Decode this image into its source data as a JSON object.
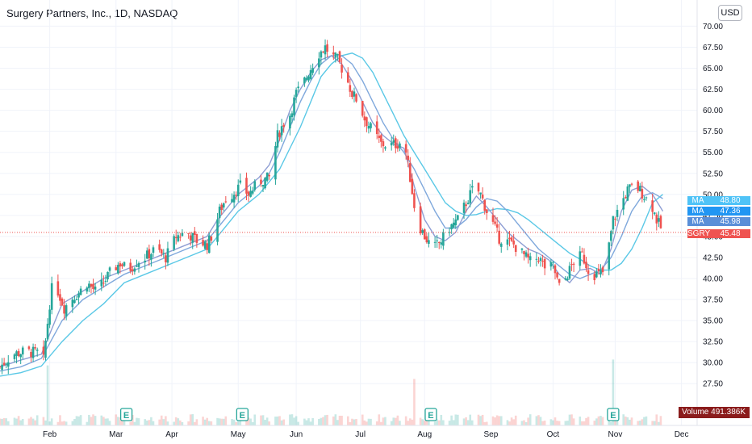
{
  "header": {
    "title": "Surgery Partners, Inc., 1D, NASDAQ",
    "currency": "USD"
  },
  "chart_data": {
    "type": "candlestick",
    "symbol": "SGRY",
    "y_ticks": [
      "27.50",
      "30.00",
      "32.50",
      "35.00",
      "37.50",
      "40.00",
      "42.50",
      "45.00",
      "47.50",
      "50.00",
      "52.50",
      "55.00",
      "57.50",
      "60.00",
      "62.50",
      "65.00",
      "67.50",
      "70.00"
    ],
    "ylim": [
      25.7,
      71
    ],
    "x_ticks": [
      "Feb",
      "Mar",
      "Apr",
      "May",
      "Jun",
      "Jul",
      "Aug",
      "Sep",
      "Oct",
      "Nov",
      "Dec"
    ],
    "x_tick_days": [
      24,
      56,
      83,
      115,
      143,
      174,
      205,
      237,
      267,
      297,
      329
    ],
    "current_price": 45.48,
    "close_points": [
      [
        0,
        29.5
      ],
      [
        6,
        31
      ],
      [
        12,
        31.3
      ],
      [
        18,
        31.2
      ],
      [
        21,
        30.3
      ],
      [
        24,
        37
      ],
      [
        26,
        40.5
      ],
      [
        28,
        38.5
      ],
      [
        31,
        36.5
      ],
      [
        34,
        37.5
      ],
      [
        38,
        38.3
      ],
      [
        42,
        39.5
      ],
      [
        46,
        38.5
      ],
      [
        50,
        39.5
      ],
      [
        54,
        41
      ],
      [
        58,
        41.8
      ],
      [
        62,
        41
      ],
      [
        66,
        42
      ],
      [
        70,
        42.5
      ],
      [
        75,
        43.5
      ],
      [
        80,
        42.5
      ],
      [
        85,
        45
      ],
      [
        90,
        45.5
      ],
      [
        95,
        44.5
      ],
      [
        100,
        44
      ],
      [
        103,
        45.5
      ],
      [
        106,
        48
      ],
      [
        109,
        49.5
      ],
      [
        112,
        50
      ],
      [
        116,
        51
      ],
      [
        120,
        50
      ],
      [
        125,
        51.5
      ],
      [
        130,
        52
      ],
      [
        134,
        57
      ],
      [
        137,
        58.5
      ],
      [
        140,
        59.5
      ],
      [
        143,
        62
      ],
      [
        146,
        63
      ],
      [
        150,
        65
      ],
      [
        153,
        66.5
      ],
      [
        157,
        67.5
      ],
      [
        160,
        66.5
      ],
      [
        163,
        66
      ],
      [
        167,
        64
      ],
      [
        170,
        62
      ],
      [
        173,
        61
      ],
      [
        176,
        59
      ],
      [
        180,
        57.5
      ],
      [
        184,
        56
      ],
      [
        188,
        55.8
      ],
      [
        192,
        56
      ],
      [
        195,
        56.5
      ],
      [
        198,
        52
      ],
      [
        201,
        47
      ],
      [
        205,
        45
      ],
      [
        209,
        43.5
      ],
      [
        213,
        44.5
      ],
      [
        217,
        46
      ],
      [
        221,
        47
      ],
      [
        225,
        49
      ],
      [
        229,
        51
      ],
      [
        232,
        50
      ],
      [
        235,
        48
      ],
      [
        238,
        46.5
      ],
      [
        241,
        44.8
      ],
      [
        244,
        44.5
      ],
      [
        248,
        44
      ],
      [
        252,
        43
      ],
      [
        256,
        42
      ],
      [
        260,
        42.5
      ],
      [
        264,
        41
      ],
      [
        267,
        41.5
      ],
      [
        270,
        39
      ],
      [
        273,
        40
      ],
      [
        277,
        42
      ],
      [
        281,
        42.8
      ],
      [
        285,
        40.5
      ],
      [
        289,
        40.5
      ],
      [
        292,
        40.8
      ],
      [
        296,
        47
      ],
      [
        300,
        49
      ],
      [
        303,
        50.5
      ],
      [
        306,
        51
      ],
      [
        309,
        50.5
      ],
      [
        312,
        49.5
      ],
      [
        315,
        48.5
      ],
      [
        317,
        47
      ],
      [
        320,
        45.5
      ]
    ],
    "moving_averages": [
      {
        "name": "MA",
        "value": "48.80",
        "color": "#5ac8e6",
        "points": [
          [
            0,
            28.4
          ],
          [
            10,
            28.8
          ],
          [
            20,
            29.6
          ],
          [
            30,
            32.5
          ],
          [
            40,
            35
          ],
          [
            50,
            37
          ],
          [
            60,
            39.5
          ],
          [
            70,
            40.5
          ],
          [
            80,
            41.5
          ],
          [
            90,
            42.5
          ],
          [
            100,
            43.5
          ],
          [
            105,
            45
          ],
          [
            110,
            46.5
          ],
          [
            115,
            48
          ],
          [
            120,
            49
          ],
          [
            125,
            50
          ],
          [
            130,
            51.5
          ],
          [
            135,
            53
          ],
          [
            140,
            55.5
          ],
          [
            145,
            58
          ],
          [
            150,
            61
          ],
          [
            155,
            64
          ],
          [
            160,
            65.5
          ],
          [
            165,
            66.5
          ],
          [
            170,
            66.8
          ],
          [
            175,
            66.2
          ],
          [
            180,
            64.5
          ],
          [
            185,
            62
          ],
          [
            190,
            59.5
          ],
          [
            195,
            57
          ],
          [
            200,
            55
          ],
          [
            205,
            53
          ],
          [
            210,
            51
          ],
          [
            215,
            49
          ],
          [
            220,
            48
          ],
          [
            225,
            47.5
          ],
          [
            230,
            47.6
          ],
          [
            235,
            48
          ],
          [
            240,
            48.3
          ],
          [
            245,
            48.2
          ],
          [
            250,
            47.8
          ],
          [
            255,
            47
          ],
          [
            260,
            46
          ],
          [
            265,
            45
          ],
          [
            270,
            44
          ],
          [
            275,
            43
          ],
          [
            280,
            42.3
          ],
          [
            285,
            41.5
          ],
          [
            290,
            41
          ],
          [
            295,
            41
          ],
          [
            300,
            41.8
          ],
          [
            305,
            43.5
          ],
          [
            310,
            46
          ],
          [
            315,
            49
          ],
          [
            320,
            50
          ]
        ]
      },
      {
        "name": "MA",
        "value": "47.36",
        "color": "#7fa8dc",
        "points": [
          [
            0,
            29
          ],
          [
            10,
            29.5
          ],
          [
            20,
            30.5
          ],
          [
            30,
            35
          ],
          [
            40,
            37.5
          ],
          [
            50,
            39
          ],
          [
            60,
            40.5
          ],
          [
            70,
            41.5
          ],
          [
            80,
            42.5
          ],
          [
            90,
            43.5
          ],
          [
            100,
            44.5
          ],
          [
            105,
            46
          ],
          [
            110,
            47.5
          ],
          [
            115,
            49
          ],
          [
            120,
            50
          ],
          [
            125,
            51
          ],
          [
            130,
            52.5
          ],
          [
            135,
            55
          ],
          [
            140,
            58
          ],
          [
            145,
            61
          ],
          [
            150,
            63.5
          ],
          [
            155,
            65.5
          ],
          [
            160,
            66.5
          ],
          [
            165,
            66.5
          ],
          [
            170,
            65.5
          ],
          [
            175,
            63.5
          ],
          [
            180,
            61
          ],
          [
            185,
            58.5
          ],
          [
            190,
            56.5
          ],
          [
            195,
            55
          ],
          [
            200,
            53
          ],
          [
            205,
            50.5
          ],
          [
            210,
            48
          ],
          [
            215,
            46
          ],
          [
            220,
            46
          ],
          [
            225,
            47
          ],
          [
            230,
            48.5
          ],
          [
            235,
            49.5
          ],
          [
            240,
            49.2
          ],
          [
            245,
            48
          ],
          [
            250,
            46.5
          ],
          [
            255,
            45
          ],
          [
            260,
            43.5
          ],
          [
            265,
            42.5
          ],
          [
            270,
            41.5
          ],
          [
            275,
            40.5
          ],
          [
            280,
            40
          ],
          [
            285,
            40.5
          ],
          [
            290,
            41
          ],
          [
            295,
            42.5
          ],
          [
            300,
            45
          ],
          [
            305,
            48
          ],
          [
            310,
            49.8
          ],
          [
            315,
            50.2
          ],
          [
            320,
            49.5
          ]
        ]
      },
      {
        "name": "MA",
        "value": "45.98",
        "color": "#8e9ed4",
        "points": [
          [
            0,
            29.5
          ],
          [
            10,
            30.3
          ],
          [
            20,
            31
          ],
          [
            25,
            34
          ],
          [
            30,
            37
          ],
          [
            40,
            38.5
          ],
          [
            50,
            40
          ],
          [
            60,
            41
          ],
          [
            70,
            42
          ],
          [
            80,
            43
          ],
          [
            90,
            44
          ],
          [
            100,
            45
          ],
          [
            105,
            47
          ],
          [
            110,
            48.5
          ],
          [
            115,
            50
          ],
          [
            120,
            51
          ],
          [
            125,
            52
          ],
          [
            130,
            53.5
          ],
          [
            135,
            56.5
          ],
          [
            140,
            60
          ],
          [
            145,
            62.5
          ],
          [
            150,
            64.5
          ],
          [
            155,
            66
          ],
          [
            160,
            66.5
          ],
          [
            165,
            65.5
          ],
          [
            170,
            63.5
          ],
          [
            175,
            61
          ],
          [
            180,
            58.5
          ],
          [
            185,
            57
          ],
          [
            190,
            56
          ],
          [
            195,
            55.5
          ],
          [
            200,
            51
          ],
          [
            205,
            47
          ],
          [
            210,
            45
          ],
          [
            215,
            44.5
          ],
          [
            220,
            45.5
          ],
          [
            225,
            48
          ],
          [
            230,
            49.8
          ],
          [
            235,
            48.5
          ],
          [
            240,
            47
          ],
          [
            245,
            45.5
          ],
          [
            250,
            44.5
          ],
          [
            255,
            43.5
          ],
          [
            260,
            43
          ],
          [
            265,
            42.2
          ],
          [
            270,
            40.5
          ],
          [
            275,
            39.5
          ],
          [
            280,
            41
          ],
          [
            285,
            41.2
          ],
          [
            290,
            40.5
          ],
          [
            295,
            43.5
          ],
          [
            300,
            48
          ],
          [
            305,
            50.5
          ],
          [
            310,
            51
          ],
          [
            315,
            50
          ],
          [
            320,
            48
          ]
        ]
      }
    ],
    "volume": {
      "label": "Volume",
      "value": "491.386K",
      "spikes": [
        [
          23,
          0.62
        ],
        [
          200,
          0.48
        ],
        [
          296,
          0.68
        ]
      ]
    },
    "earnings_markers": [
      {
        "day": 61,
        "label": "E"
      },
      {
        "day": 117,
        "label": "E"
      },
      {
        "day": 208,
        "label": "E"
      },
      {
        "day": 296,
        "label": "E"
      }
    ]
  }
}
